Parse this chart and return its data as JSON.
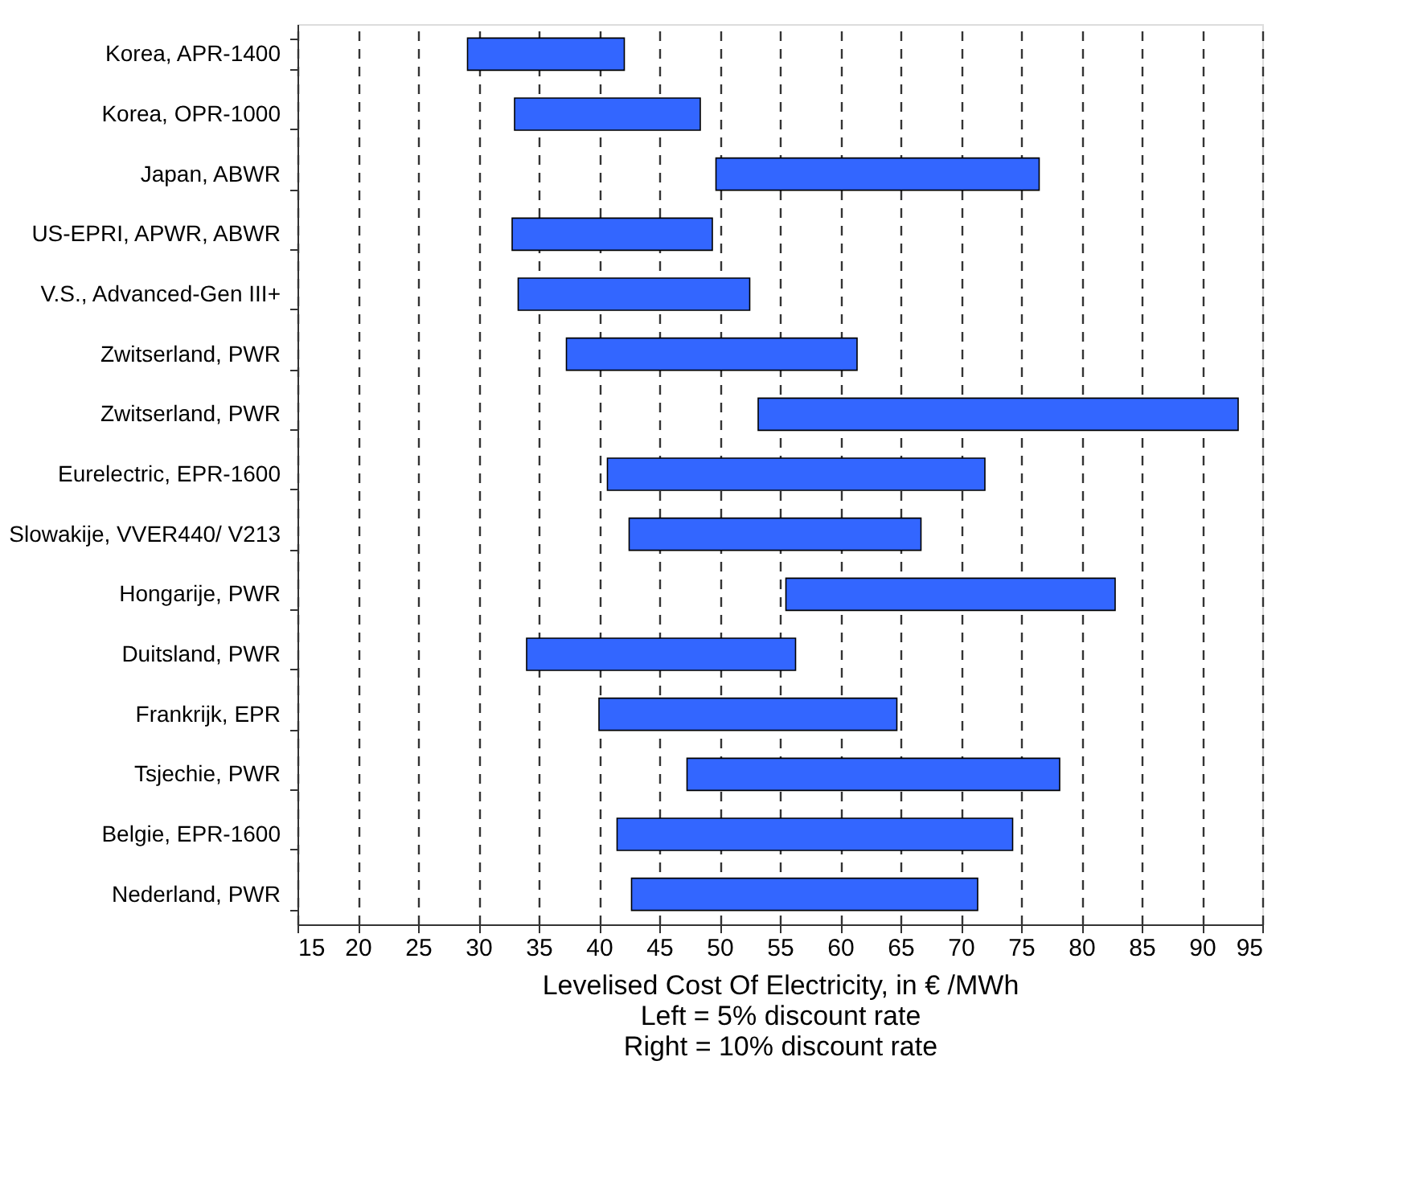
{
  "chart_data": {
    "type": "bar",
    "orientation": "horizontal",
    "categories": [
      "Korea, APR-1400",
      "Korea, OPR-1000",
      "Japan, ABWR",
      "US-EPRI, APWR, ABWR",
      "V.S., Advanced-Gen III+",
      "Zwitserland, PWR",
      "Zwitserland, PWR",
      "Eurelectric, EPR-1600",
      "Slowakije, VVER440/ V213",
      "Hongarije, PWR",
      "Duitsland, PWR",
      "Frankrijk, EPR",
      "Tsjechie, PWR",
      "Belgie, EPR-1600",
      "Nederland, PWR"
    ],
    "base": [
      29.1,
      33.0,
      49.7,
      32.8,
      33.3,
      37.3,
      53.2,
      40.7,
      42.5,
      55.5,
      34.0,
      40.0,
      47.3,
      41.5,
      42.7
    ],
    "values": [
      13.0,
      15.4,
      26.8,
      16.6,
      19.2,
      24.1,
      39.8,
      31.3,
      24.2,
      27.3,
      22.3,
      24.7,
      30.9,
      32.8,
      28.7
    ],
    "color": "#3366ff",
    "xlim": [
      15,
      95
    ],
    "xticks": [
      15,
      20,
      25,
      30,
      35,
      40,
      45,
      50,
      55,
      60,
      65,
      70,
      75,
      80,
      85,
      90,
      95
    ],
    "xlabel": "Levelised Cost Of Electricity, in € /MWh",
    "annotations": [
      "Left = 5% discount rate",
      "Right = 10% discount rate"
    ],
    "grid": "x"
  }
}
